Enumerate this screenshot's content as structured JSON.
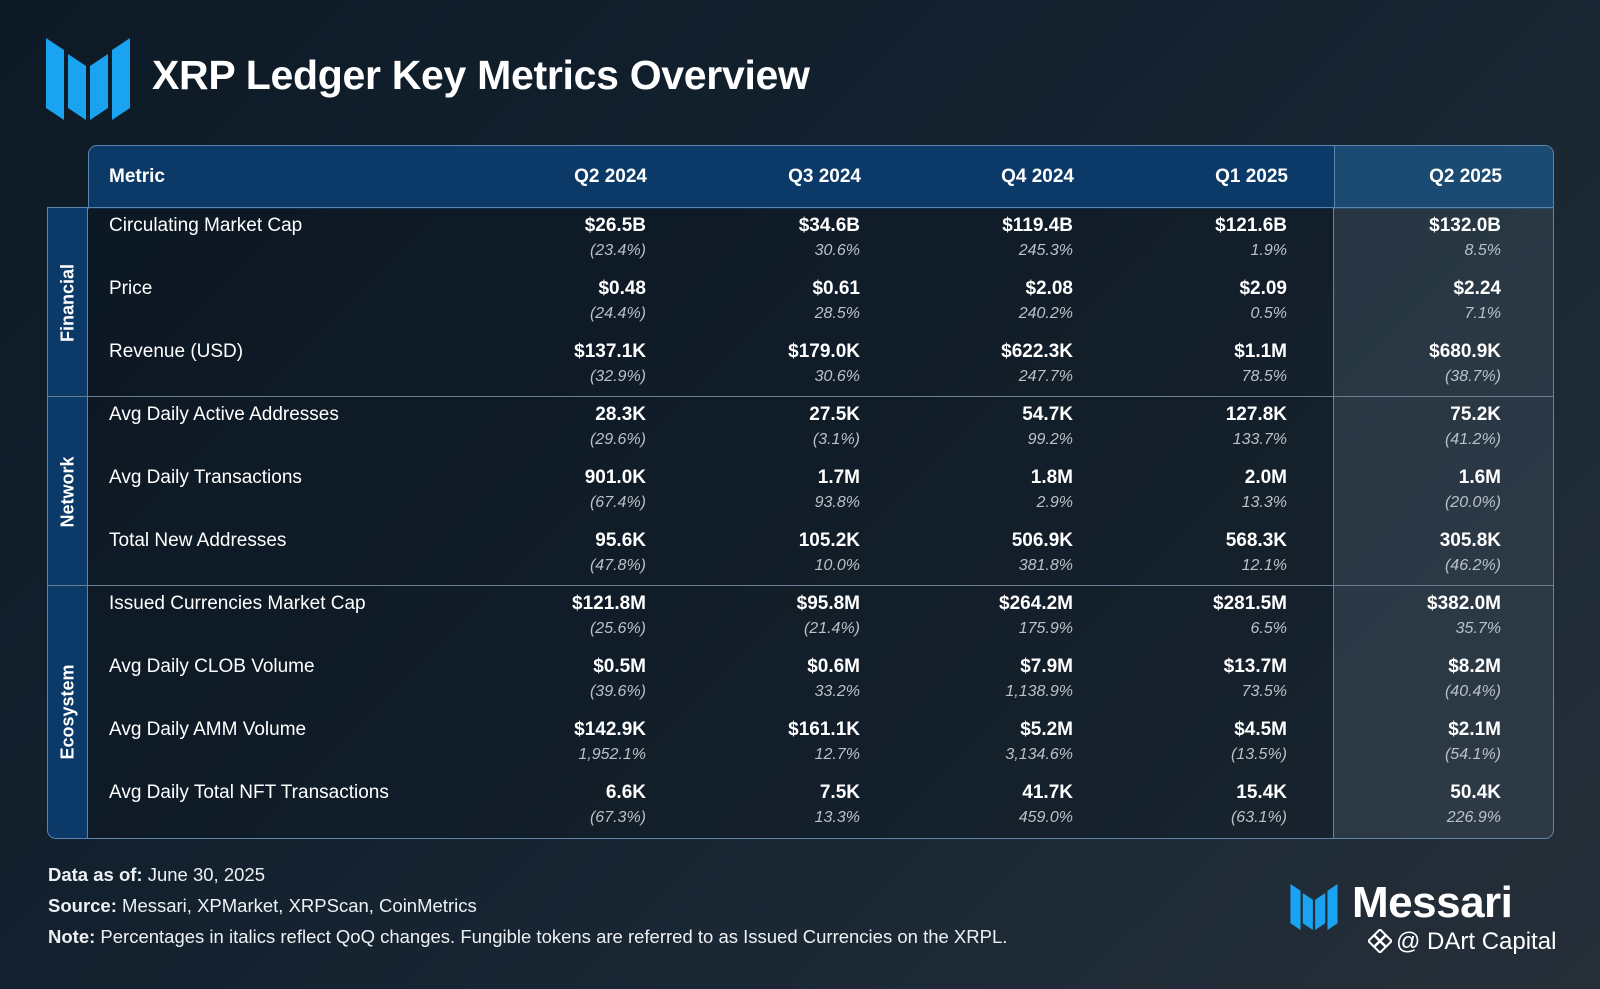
{
  "title": "XRP Ledger Key Metrics Overview",
  "colors": {
    "header_blue": "#0b3a68",
    "border": "#5d84ab",
    "logo_blue": "#1aa3f0"
  },
  "chart_data": {
    "type": "table",
    "columns": [
      "Metric",
      "Q2 2024",
      "Q3 2024",
      "Q4 2024",
      "Q1 2025",
      "Q2 2025"
    ],
    "highlighted_column": "Q2 2025",
    "groups": [
      {
        "name": "Financial",
        "rows": [
          {
            "metric": "Circulating Market Cap",
            "values": [
              "$26.5B",
              "$34.6B",
              "$119.4B",
              "$121.6B",
              "$132.0B"
            ],
            "changes": [
              "(23.4%)",
              "30.6%",
              "245.3%",
              "1.9%",
              "8.5%"
            ]
          },
          {
            "metric": "Price",
            "values": [
              "$0.48",
              "$0.61",
              "$2.08",
              "$2.09",
              "$2.24"
            ],
            "changes": [
              "(24.4%)",
              "28.5%",
              "240.2%",
              "0.5%",
              "7.1%"
            ]
          },
          {
            "metric": "Revenue (USD)",
            "values": [
              "$137.1K",
              "$179.0K",
              "$622.3K",
              "$1.1M",
              "$680.9K"
            ],
            "changes": [
              "(32.9%)",
              "30.6%",
              "247.7%",
              "78.5%",
              "(38.7%)"
            ]
          }
        ]
      },
      {
        "name": "Network",
        "rows": [
          {
            "metric": "Avg Daily Active Addresses",
            "values": [
              "28.3K",
              "27.5K",
              "54.7K",
              "127.8K",
              "75.2K"
            ],
            "changes": [
              "(29.6%)",
              "(3.1%)",
              "99.2%",
              "133.7%",
              "(41.2%)"
            ]
          },
          {
            "metric": "Avg Daily Transactions",
            "values": [
              "901.0K",
              "1.7M",
              "1.8M",
              "2.0M",
              "1.6M"
            ],
            "changes": [
              "(67.4%)",
              "93.8%",
              "2.9%",
              "13.3%",
              "(20.0%)"
            ]
          },
          {
            "metric": "Total New Addresses",
            "values": [
              "95.6K",
              "105.2K",
              "506.9K",
              "568.3K",
              "305.8K"
            ],
            "changes": [
              "(47.8%)",
              "10.0%",
              "381.8%",
              "12.1%",
              "(46.2%)"
            ]
          }
        ]
      },
      {
        "name": "Ecosystem",
        "rows": [
          {
            "metric": "Issued Currencies Market Cap",
            "values": [
              "$121.8M",
              "$95.8M",
              "$264.2M",
              "$281.5M",
              "$382.0M"
            ],
            "changes": [
              "(25.6%)",
              "(21.4%)",
              "175.9%",
              "6.5%",
              "35.7%"
            ]
          },
          {
            "metric": "Avg Daily CLOB Volume",
            "values": [
              "$0.5M",
              "$0.6M",
              "$7.9M",
              "$13.7M",
              "$8.2M"
            ],
            "changes": [
              "(39.6%)",
              "33.2%",
              "1,138.9%",
              "73.5%",
              "(40.4%)"
            ]
          },
          {
            "metric": "Avg Daily AMM Volume",
            "values": [
              "$142.9K",
              "$161.1K",
              "$5.2M",
              "$4.5M",
              "$2.1M"
            ],
            "changes": [
              "1,952.1%",
              "12.7%",
              "3,134.6%",
              "(13.5%)",
              "(54.1%)"
            ]
          },
          {
            "metric": "Avg Daily Total NFT Transactions",
            "values": [
              "6.6K",
              "7.5K",
              "41.7K",
              "15.4K",
              "50.4K"
            ],
            "changes": [
              "(67.3%)",
              "13.3%",
              "459.0%",
              "(63.1%)",
              "226.9%"
            ]
          }
        ]
      }
    ]
  },
  "footer": {
    "data_label": "Data as of:",
    "data_value": "June 30, 2025",
    "source_label": "Source:",
    "source_value": "Messari, XPMarket, XRPScan, CoinMetrics",
    "note_label": "Note:",
    "note_value": "Percentages in italics reflect QoQ changes. Fungible tokens are referred to as Issued Currencies on the XRPL."
  },
  "brand": {
    "name": "Messari",
    "watermark": "@ DArt Capital"
  },
  "icons": {
    "logo": "messari-m-logo-icon",
    "watermark": "binance-diamond-icon"
  }
}
